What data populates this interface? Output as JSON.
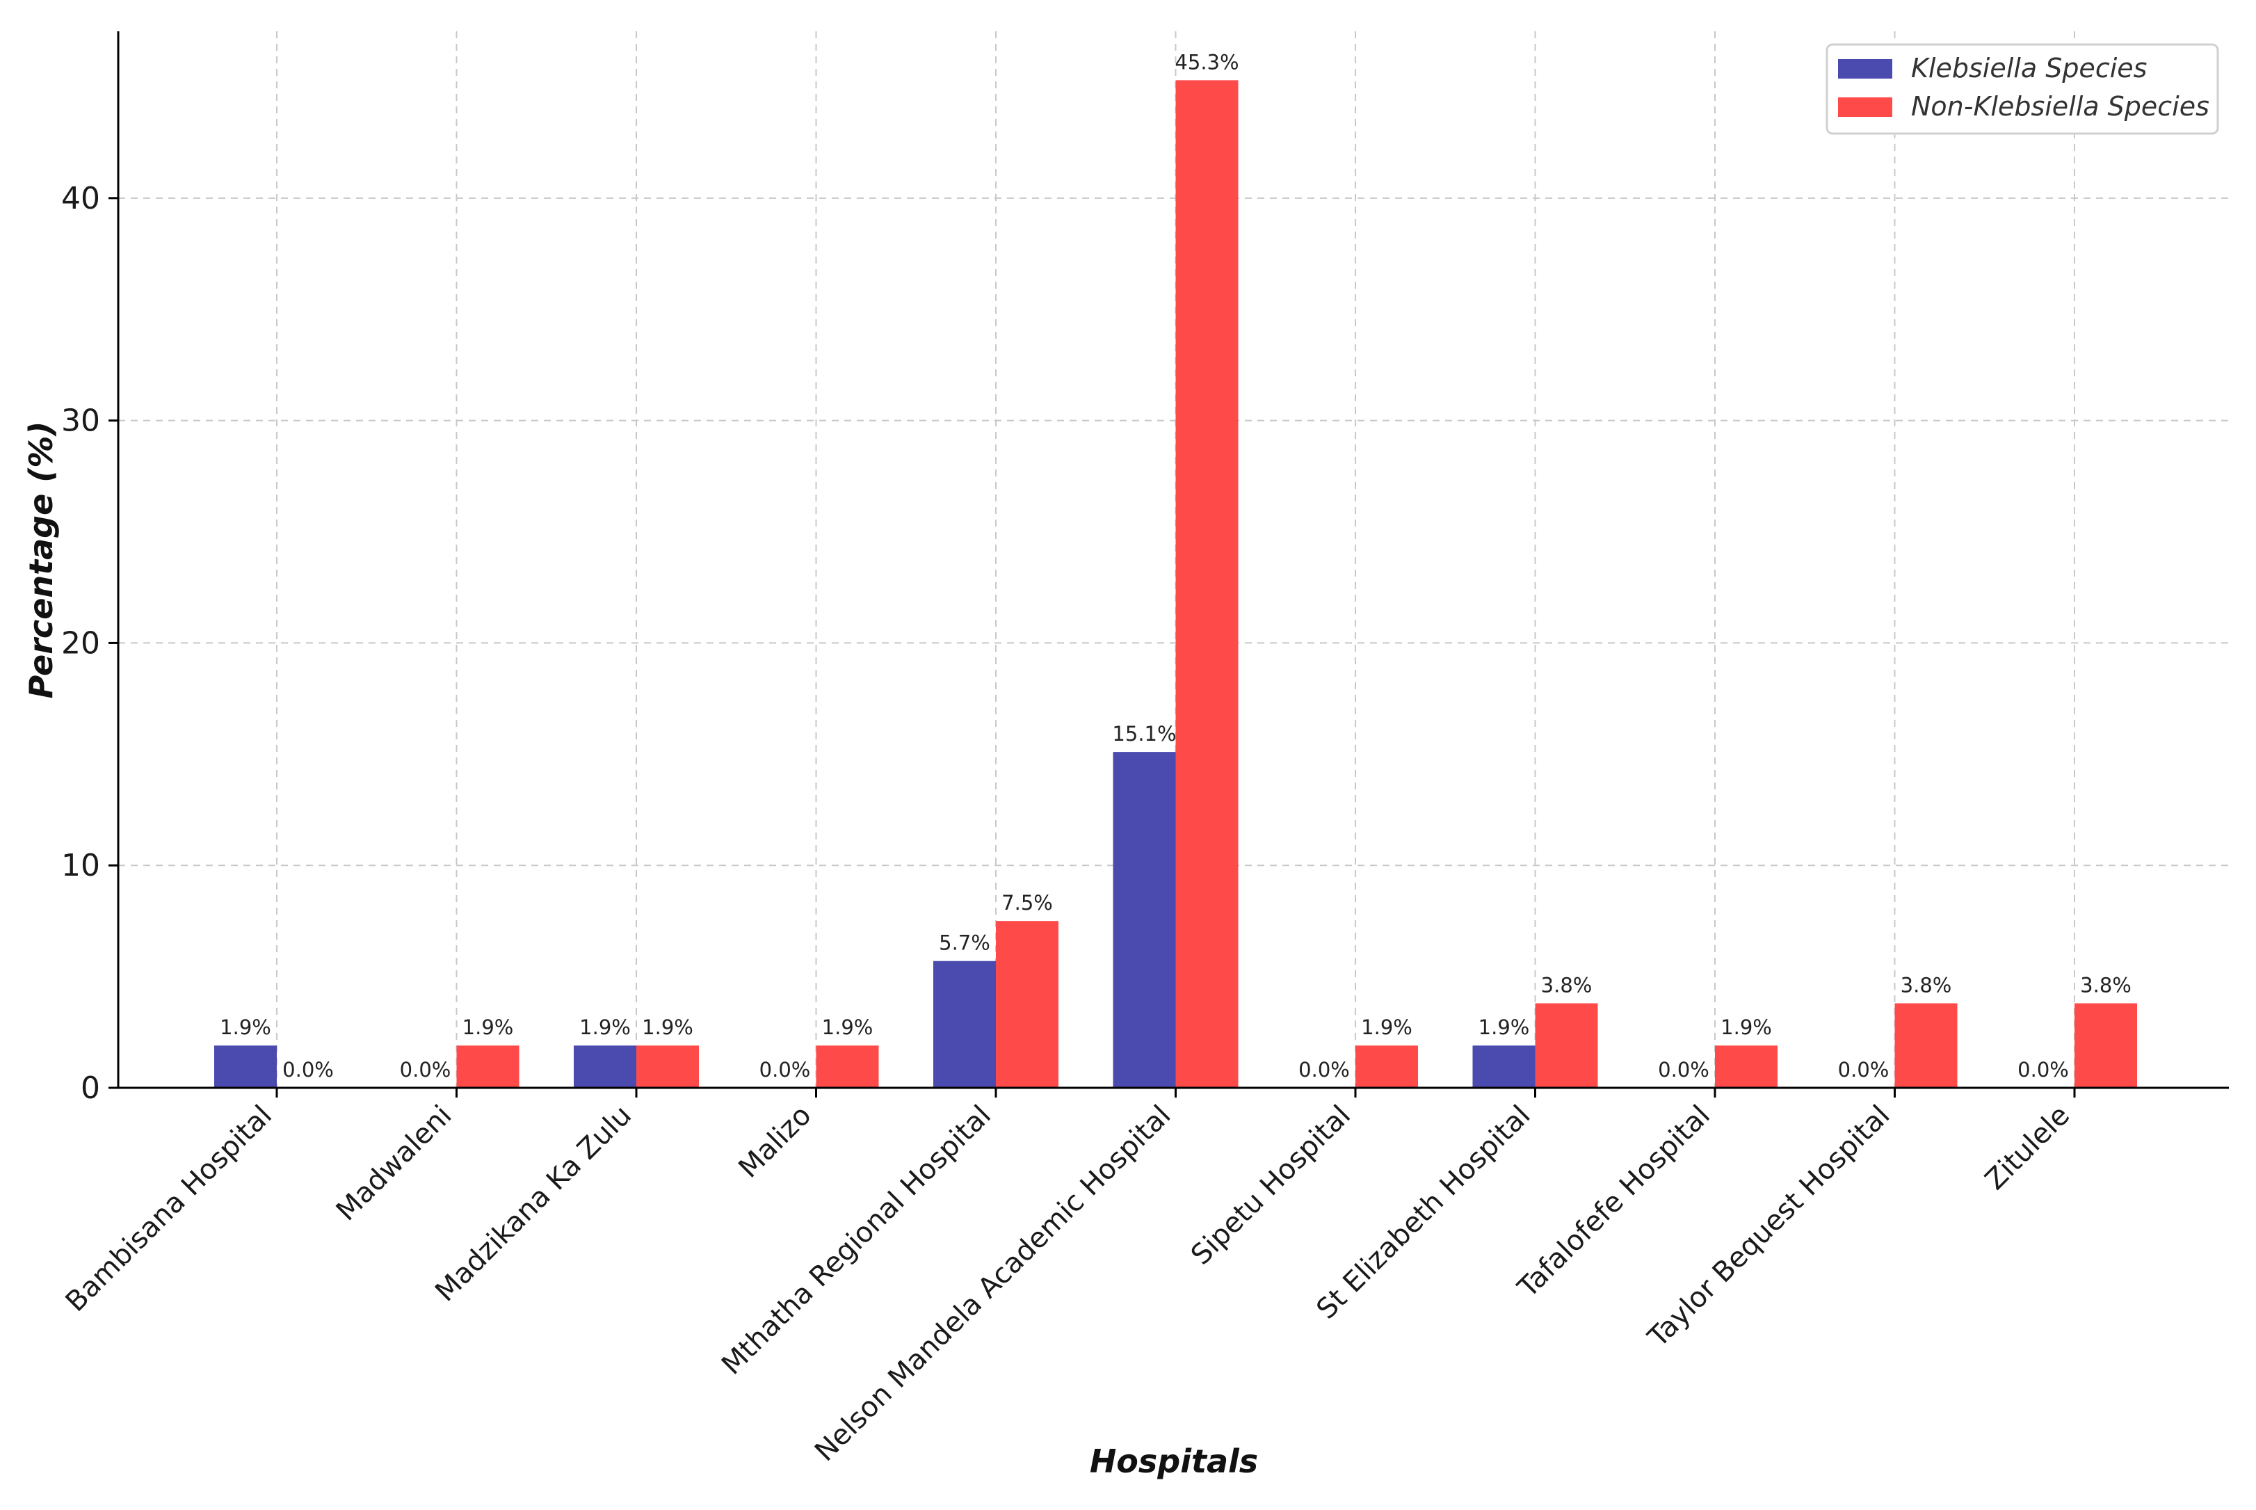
{
  "chart_data": {
    "type": "bar",
    "title": "",
    "xlabel": "Hospitals",
    "ylabel": "Percentage (%)",
    "ylim": [
      0,
      47.5
    ],
    "yticks": [
      0,
      10,
      20,
      30,
      40
    ],
    "grid": true,
    "legend_position": "top-right",
    "categories": [
      "Bambisana Hospital",
      "Madwaleni",
      "Madzikana Ka Zulu",
      "Malizo",
      "Mthatha Regional Hospital",
      "Nelson Mandela Academic Hospital",
      "Sipetu Hospital",
      "St Elizabeth Hospital",
      "Tafalofefe Hospital",
      "Taylor Bequest Hospital",
      "Zitulele"
    ],
    "series": [
      {
        "name": "Klebsiella Species",
        "color": "#4a4aaf",
        "values": [
          1.9,
          0.0,
          1.9,
          0.0,
          5.7,
          15.1,
          0.0,
          1.9,
          0.0,
          0.0,
          0.0
        ],
        "labels": [
          "1.9%",
          "0.0%",
          "1.9%",
          "0.0%",
          "5.7%",
          "15.1%",
          "0.0%",
          "1.9%",
          "0.0%",
          "0.0%",
          "0.0%"
        ]
      },
      {
        "name": "Non-Klebsiella Species",
        "color": "#ff4a4a",
        "values": [
          0.0,
          1.9,
          1.9,
          1.9,
          7.5,
          45.3,
          1.9,
          3.8,
          1.9,
          3.8,
          3.8
        ],
        "labels": [
          "0.0%",
          "1.9%",
          "1.9%",
          "1.9%",
          "7.5%",
          "45.3%",
          "1.9%",
          "3.8%",
          "1.9%",
          "3.8%",
          "3.8%"
        ]
      }
    ]
  }
}
